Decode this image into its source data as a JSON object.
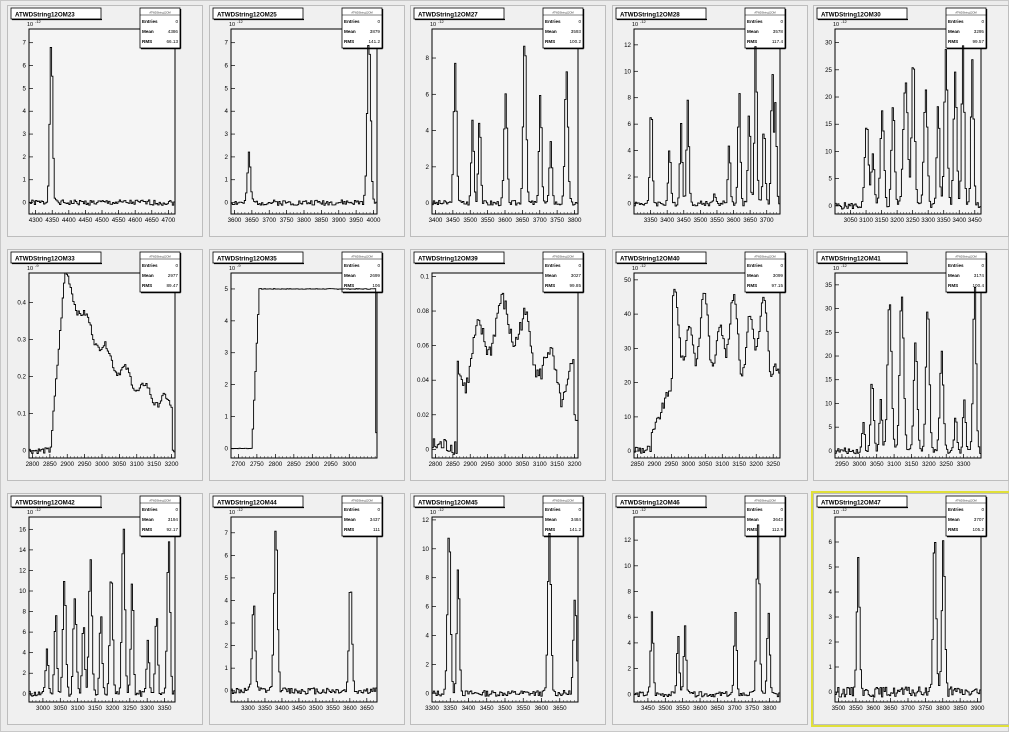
{
  "window": {
    "type": "ROOT canvas grid 5x3"
  },
  "chart_data": [
    {
      "type": "line",
      "title": "ATWDString12OM23",
      "exponent": "10",
      "exp_power": "-12",
      "stats": {
        "header": "Entries",
        "entries": "0",
        "mean": "4386",
        "rms": "66.13"
      },
      "xticks": [
        "4300",
        "4350",
        "4400",
        "4450",
        "4500",
        "4550",
        "4600",
        "4650",
        "4700"
      ],
      "xlim": [
        4280,
        4720
      ],
      "yticks": [
        "0",
        "1",
        "2",
        "3",
        "4",
        "5",
        "6",
        "7"
      ],
      "ylim": [
        -0.5,
        7.6
      ],
      "peaks": [
        [
          4345,
          7.1,
          6
        ]
      ],
      "noise": 0.12,
      "seed": 1
    },
    {
      "type": "line",
      "title": "ATWDString12OM25",
      "exponent": "10",
      "exp_power": "-12",
      "stats": {
        "header": "Entries",
        "entries": "0",
        "mean": "3879",
        "rms": "141.2"
      },
      "xticks": [
        "3600",
        "3650",
        "3700",
        "3750",
        "3800",
        "3850",
        "3900",
        "3950",
        "4000"
      ],
      "xlim": [
        3590,
        4010
      ],
      "yticks": [
        "0",
        "1",
        "2",
        "3",
        "4",
        "5",
        "6",
        "7"
      ],
      "ylim": [
        -0.5,
        7.6
      ],
      "peaks": [
        [
          3640,
          2.1,
          6
        ],
        [
          3985,
          7.2,
          7
        ]
      ],
      "noise": 0.12,
      "seed": 2
    },
    {
      "type": "line",
      "title": "ATWDString12OM27",
      "exponent": "10",
      "exp_power": "-12",
      "stats": {
        "header": "Entries",
        "entries": "0",
        "mean": "3593",
        "rms": "100.2"
      },
      "xticks": [
        "3400",
        "3450",
        "3500",
        "3550",
        "3600",
        "3650",
        "3700",
        "3750",
        "3800"
      ],
      "xlim": [
        3390,
        3810
      ],
      "yticks": [
        "0",
        "2",
        "4",
        "6",
        "8"
      ],
      "ylim": [
        -0.6,
        9.6
      ],
      "peaks": [
        [
          3455,
          7.6,
          6
        ],
        [
          3505,
          4.6,
          5
        ],
        [
          3525,
          4.8,
          5
        ],
        [
          3600,
          6.0,
          6
        ],
        [
          3655,
          9.4,
          6
        ],
        [
          3700,
          6.2,
          5
        ],
        [
          3730,
          3.5,
          5
        ],
        [
          3775,
          7.4,
          6
        ]
      ],
      "noise": 0.15,
      "seed": 3
    },
    {
      "type": "line",
      "title": "ATWDString12OM28",
      "exponent": "10",
      "exp_power": "-12",
      "stats": {
        "header": "Entries",
        "entries": "0",
        "mean": "3578",
        "rms": "117.4"
      },
      "xticks": [
        "3350",
        "3400",
        "3450",
        "3500",
        "3550",
        "3600",
        "3650",
        "3700"
      ],
      "xlim": [
        3300,
        3740
      ],
      "yticks": [
        "0",
        "2",
        "4",
        "6",
        "8",
        "10",
        "12"
      ],
      "ylim": [
        -0.8,
        13.2
      ],
      "peaks": [
        [
          3350,
          7.5,
          5
        ],
        [
          3405,
          4.2,
          5
        ],
        [
          3440,
          6.0,
          5
        ],
        [
          3460,
          8.0,
          5
        ],
        [
          3540,
          0.9,
          4
        ],
        [
          3585,
          4.5,
          5
        ],
        [
          3615,
          8.5,
          5
        ],
        [
          3645,
          7.0,
          5
        ],
        [
          3665,
          12.2,
          5
        ],
        [
          3690,
          6.0,
          5
        ],
        [
          3715,
          10.0,
          5
        ],
        [
          3725,
          7.8,
          4
        ]
      ],
      "noise": 0.2,
      "seed": 4
    },
    {
      "type": "line",
      "title": "ATWDString12OM30",
      "exponent": "10",
      "exp_power": "-12",
      "stats": {
        "header": "Entries",
        "entries": "0",
        "mean": "3295",
        "rms": "99.57"
      },
      "xticks": [
        "3050",
        "3100",
        "3150",
        "3200",
        "3250",
        "3300",
        "3350",
        "3400",
        "3450"
      ],
      "xlim": [
        3000,
        3470
      ],
      "yticks": [
        "0",
        "5",
        "10",
        "15",
        "20",
        "25",
        "30"
      ],
      "ylim": [
        -1.5,
        32.5
      ],
      "peaks": [
        [
          3100,
          15,
          8
        ],
        [
          3120,
          10,
          6
        ],
        [
          3150,
          17,
          8
        ],
        [
          3185,
          19,
          7
        ],
        [
          3225,
          23,
          10
        ],
        [
          3250,
          28,
          7
        ],
        [
          3290,
          21,
          8
        ],
        [
          3330,
          19,
          6
        ],
        [
          3355,
          29,
          7
        ],
        [
          3385,
          25,
          7
        ],
        [
          3410,
          30,
          6
        ],
        [
          3440,
          27,
          6
        ]
      ],
      "noise": 0.6,
      "seed": 5
    },
    {
      "type": "line",
      "title": "ATWDString12OM33",
      "exponent": "10",
      "exp_power": "-9",
      "stats": {
        "header": "Entries",
        "entries": "0",
        "mean": "2977",
        "rms": "89.47"
      },
      "xticks": [
        "2800",
        "2850",
        "2900",
        "2950",
        "3000",
        "3050",
        "3100",
        "3150",
        "3200"
      ],
      "xlim": [
        2790,
        3210
      ],
      "yticks": [
        "0",
        "0.1",
        "0.2",
        "0.3",
        "0.4"
      ],
      "ylim": [
        -0.02,
        0.48
      ],
      "shape": "decay",
      "noise": 0.008,
      "seed": 6
    },
    {
      "type": "line",
      "title": "ATWDString12OM35",
      "exponent": "10",
      "exp_power": "-9",
      "stats": {
        "header": "Entries",
        "entries": "0",
        "mean": "2699",
        "rms": "106"
      },
      "xticks": [
        "2700",
        "2750",
        "2800",
        "2850",
        "2900",
        "2950",
        "3000"
      ],
      "xlim": [
        2680,
        3075
      ],
      "yticks": [
        "0",
        "1",
        "2",
        "3",
        "4",
        "5"
      ],
      "ylim": [
        -0.3,
        5.5
      ],
      "shape": "plateau",
      "noise": 0.01,
      "seed": 7
    },
    {
      "type": "line",
      "title": "ATWDString12OM39",
      "exponent": "",
      "stats": {
        "header": "Entries",
        "entries": "0",
        "mean": "3027",
        "rms": "99.85"
      },
      "xticks": [
        "2800",
        "2850",
        "2900",
        "2950",
        "3000",
        "3050",
        "3100",
        "3150",
        "3200"
      ],
      "xlim": [
        2790,
        3210
      ],
      "yticks": [
        "0",
        "0.02",
        "0.04",
        "0.06",
        "0.08",
        "0.1"
      ],
      "ylim": [
        -0.005,
        0.102
      ],
      "shape": "broad",
      "noise": 0.005,
      "seed": 8
    },
    {
      "type": "line",
      "title": "ATWDString12OM40",
      "exponent": "10",
      "exp_power": "-12",
      "stats": {
        "header": "Entries",
        "entries": "0",
        "mean": "3099",
        "rms": "97.15"
      },
      "xticks": [
        "2850",
        "2900",
        "2950",
        "3000",
        "3050",
        "3100",
        "3150",
        "3200",
        "3250"
      ],
      "xlim": [
        2840,
        3270
      ],
      "yticks": [
        "0",
        "10",
        "20",
        "30",
        "40",
        "50"
      ],
      "ylim": [
        -2,
        52
      ],
      "shape": "jagged",
      "noise": 1.5,
      "seed": 9
    },
    {
      "type": "line",
      "title": "ATWDString12OM41",
      "exponent": "10",
      "exp_power": "-12",
      "stats": {
        "header": "Entries",
        "entries": "0",
        "mean": "3174",
        "rms": "100.4"
      },
      "xticks": [
        "2950",
        "3000",
        "3050",
        "3100",
        "3150",
        "3200",
        "3250",
        "3300"
      ],
      "xlim": [
        2930,
        3350
      ],
      "yticks": [
        "0",
        "5",
        "10",
        "15",
        "20",
        "25",
        "30",
        "35"
      ],
      "ylim": [
        -1.5,
        37.5
      ],
      "peaks": [
        [
          3010,
          6,
          5
        ],
        [
          3035,
          15,
          6
        ],
        [
          3060,
          11,
          5
        ],
        [
          3085,
          32,
          8
        ],
        [
          3120,
          33,
          8
        ],
        [
          3160,
          23,
          7
        ],
        [
          3195,
          31,
          7
        ],
        [
          3235,
          21,
          7
        ],
        [
          3275,
          8,
          5
        ],
        [
          3300,
          11,
          5
        ],
        [
          3330,
          35,
          6
        ]
      ],
      "noise": 0.6,
      "seed": 10
    },
    {
      "type": "line",
      "title": "ATWDString12OM42",
      "exponent": "10",
      "exp_power": "-12",
      "stats": {
        "header": "Entries",
        "entries": "0",
        "mean": "3194",
        "rms": "92.17"
      },
      "xticks": [
        "3000",
        "3050",
        "3100",
        "3150",
        "3200",
        "3250",
        "3300",
        "3350"
      ],
      "xlim": [
        2960,
        3380
      ],
      "yticks": [
        "0",
        "2",
        "4",
        "6",
        "8",
        "10",
        "12",
        "14",
        "16"
      ],
      "ylim": [
        -0.8,
        17.2
      ],
      "peaks": [
        [
          3010,
          4.5,
          5
        ],
        [
          3035,
          8,
          5
        ],
        [
          3060,
          11,
          6
        ],
        [
          3090,
          9.5,
          6
        ],
        [
          3115,
          7,
          5
        ],
        [
          3135,
          13,
          6
        ],
        [
          3165,
          8,
          5
        ],
        [
          3195,
          12,
          6
        ],
        [
          3230,
          16.5,
          6
        ],
        [
          3255,
          11,
          5
        ],
        [
          3300,
          5,
          5
        ],
        [
          3325,
          8,
          5
        ],
        [
          3360,
          15,
          6
        ]
      ],
      "noise": 0.3,
      "seed": 11
    },
    {
      "type": "line",
      "title": "ATWDString12OM44",
      "exponent": "10",
      "exp_power": "-12",
      "stats": {
        "header": "Entries",
        "entries": "0",
        "mean": "3437",
        "rms": "111"
      },
      "xticks": [
        "3300",
        "3350",
        "3400",
        "3450",
        "3500",
        "3550",
        "3600",
        "3650"
      ],
      "xlim": [
        3250,
        3680
      ],
      "yticks": [
        "0",
        "1",
        "2",
        "3",
        "4",
        "5",
        "6",
        "7"
      ],
      "ylim": [
        -0.5,
        7.7
      ],
      "peaks": [
        [
          3315,
          4.0,
          6
        ],
        [
          3380,
          7.3,
          7
        ],
        [
          3600,
          4.9,
          6
        ]
      ],
      "noise": 0.15,
      "seed": 12
    },
    {
      "type": "line",
      "title": "ATWDString12OM45",
      "exponent": "10",
      "exp_power": "-12",
      "stats": {
        "header": "Entries",
        "entries": "0",
        "mean": "3484",
        "rms": "141.2"
      },
      "xticks": [
        "3300",
        "3350",
        "3400",
        "3450",
        "3500",
        "3550",
        "3600",
        "3650"
      ],
      "xlim": [
        3300,
        3700
      ],
      "yticks": [
        "0",
        "2",
        "4",
        "6",
        "8",
        "10",
        "12"
      ],
      "ylim": [
        -0.6,
        12.2
      ],
      "peaks": [
        [
          3345,
          11.2,
          6
        ],
        [
          3370,
          9.0,
          5
        ],
        [
          3620,
          11.0,
          6
        ],
        [
          3690,
          6.5,
          6
        ]
      ],
      "noise": 0.2,
      "seed": 13
    },
    {
      "type": "line",
      "title": "ATWDString12OM46",
      "exponent": "10",
      "exp_power": "-12",
      "stats": {
        "header": "Entries",
        "entries": "0",
        "mean": "3643",
        "rms": "112.9"
      },
      "xticks": [
        "3450",
        "3500",
        "3550",
        "3600",
        "3650",
        "3700",
        "3750",
        "3800"
      ],
      "xlim": [
        3410,
        3830
      ],
      "yticks": [
        "0",
        "2",
        "4",
        "6",
        "8",
        "10",
        "12"
      ],
      "ylim": [
        -0.6,
        13.8
      ],
      "peaks": [
        [
          3460,
          6.5,
          5
        ],
        [
          3535,
          4.5,
          5
        ],
        [
          3555,
          5.2,
          5
        ],
        [
          3700,
          6.2,
          5
        ],
        [
          3765,
          13.0,
          6
        ],
        [
          3795,
          6.5,
          5
        ]
      ],
      "noise": 0.2,
      "seed": 14
    },
    {
      "type": "line",
      "title": "ATWDString12OM47",
      "exponent": "10",
      "exp_power": "-12",
      "stats": {
        "header": "Entries",
        "entries": "0",
        "mean": "3707",
        "rms": "105.2"
      },
      "xticks": [
        "3500",
        "3550",
        "3600",
        "3650",
        "3700",
        "3750",
        "3800",
        "3850",
        "3900"
      ],
      "xlim": [
        3490,
        3910
      ],
      "yticks": [
        "0",
        "1",
        "2",
        "3",
        "4",
        "5",
        "6"
      ],
      "ylim": [
        -0.4,
        7.0
      ],
      "peaks": [
        [
          3555,
          5.2,
          6
        ],
        [
          3775,
          6.5,
          6
        ],
        [
          3800,
          6.0,
          6
        ]
      ],
      "noise": 0.2,
      "seed": 15,
      "selected": true
    }
  ]
}
